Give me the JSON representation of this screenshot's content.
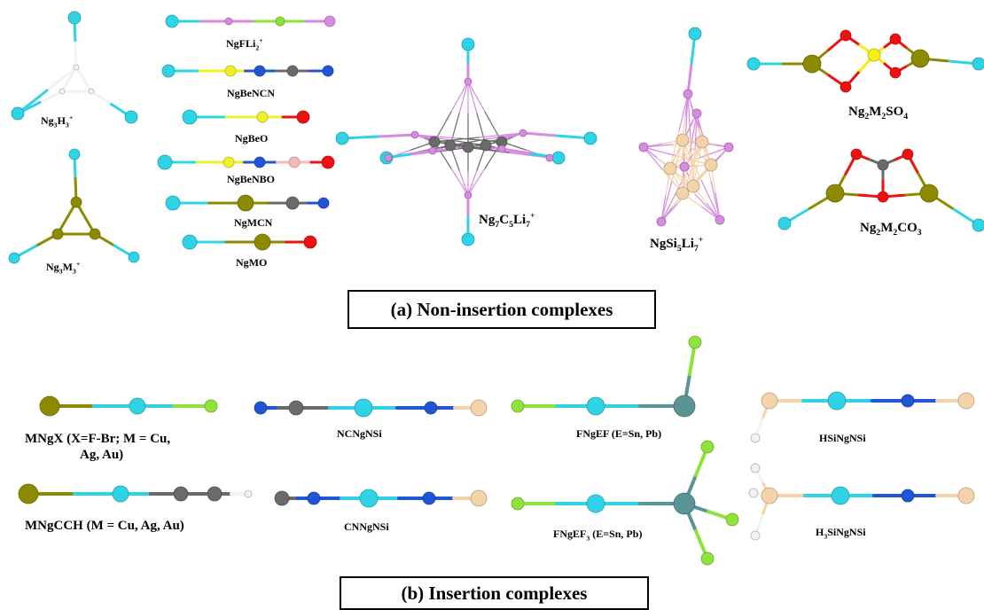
{
  "atom_colors": {
    "Ng": "#2fd3e6",
    "M": "#8c8a00",
    "F": "#8fe23a",
    "Li": "#d78be0",
    "Be": "#eef02a",
    "N": "#1f55d6",
    "C": "#6a6a6a",
    "O": "#ee1111",
    "B": "#f4b9b9",
    "Si": "#f4d3aa",
    "S": "#f5ef10",
    "H": "#f2f2f2",
    "E": "#5b9497"
  },
  "sections": {
    "a_title": "(a) Non-insertion complexes",
    "b_title": "(b) Insertion complexes"
  },
  "labels": {
    "ng3h3": {
      "base": "Ng",
      "s1": "3",
      "m": "H",
      "s2": "3",
      "sup": "+"
    },
    "ng3m3": {
      "base": "Ng",
      "s1": "3",
      "m": "M",
      "s2": "3",
      "sup": "+"
    },
    "ngfli2": {
      "base": "NgFLi",
      "s1": "2",
      "sup": "+"
    },
    "ngbencn": "NgBeNCN",
    "ngbeo": "NgBeO",
    "ngbenbo": "NgBeNBO",
    "ngmcn": "NgMCN",
    "ngmo": "NgMO",
    "ng7c5li7": {
      "a": "Ng",
      "s1": "7",
      "b": "C",
      "s2": "5",
      "c": "Li",
      "s3": "7",
      "sup": "+"
    },
    "ngsi5li7": {
      "a": "NgSi",
      "s1": "5",
      "b": "Li",
      "s2": "7",
      "sup": "+"
    },
    "ng2m2so4": {
      "a": "Ng",
      "s1": "2",
      "b": "M",
      "s2": "2",
      "c": "SO",
      "s3": "4"
    },
    "ng2m2co3": {
      "a": "Ng",
      "s1": "2",
      "b": "M",
      "s2": "2",
      "c": "CO",
      "s3": "3"
    },
    "mngx_line1": "MNgX (X=F-Br; M = Cu,",
    "mngx_line2": "Ag, Au)",
    "ncngnsi": "NCNgNSi",
    "fngef": "FNgEF (E=Sn, Pb)",
    "hsingnsi": "HSiNgNSi",
    "mngcch": "MNgCCH (M = Cu, Ag, Au)",
    "cnngnsi": "CNNgNSi",
    "fngef3": {
      "a": "FNgEF",
      "s1": "3",
      "b": " (E=Sn, Pb)"
    },
    "h3singnsi": {
      "a": "H",
      "s1": "3",
      "b": "SiNgNSi"
    }
  }
}
